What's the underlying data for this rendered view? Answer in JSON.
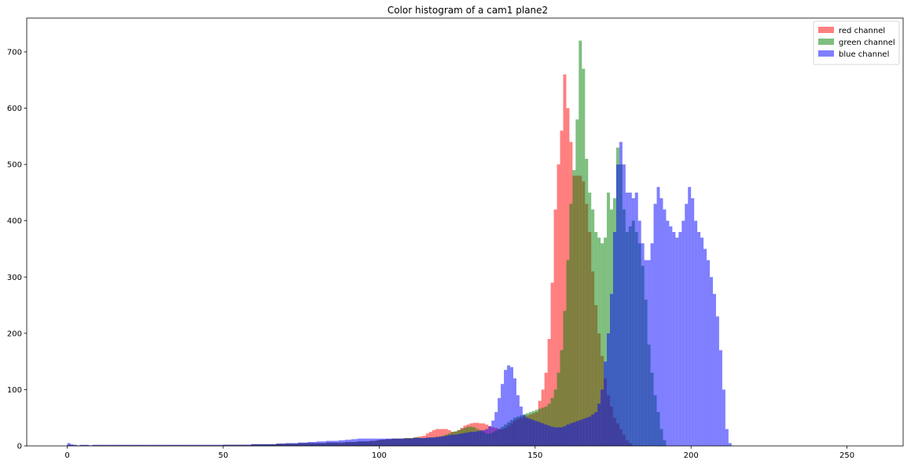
{
  "chart_data": {
    "type": "bar",
    "title": "Color histogram of a cam1 plane2",
    "xlabel": "",
    "ylabel": "",
    "xlim": [
      -13,
      268
    ],
    "ylim": [
      0,
      760
    ],
    "x_ticks": [
      0,
      50,
      100,
      150,
      200,
      250
    ],
    "y_ticks": [
      0,
      100,
      200,
      300,
      400,
      500,
      600,
      700
    ],
    "grid": false,
    "legend_position": "top-right",
    "bin_width": 1,
    "bin_start": 0,
    "series": [
      {
        "name": "red channel",
        "color": "#ff0000",
        "opacity": 0.5,
        "values": [
          2,
          1,
          1,
          0,
          1,
          1,
          1,
          0,
          1,
          1,
          1,
          1,
          1,
          1,
          1,
          1,
          1,
          1,
          1,
          1,
          1,
          1,
          1,
          1,
          1,
          1,
          1,
          1,
          1,
          1,
          1,
          1,
          1,
          1,
          1,
          1,
          1,
          1,
          1,
          1,
          1,
          1,
          1,
          1,
          1,
          1,
          1,
          1,
          1,
          1,
          2,
          2,
          2,
          2,
          2,
          2,
          2,
          2,
          2,
          3,
          3,
          3,
          3,
          3,
          3,
          3,
          3,
          4,
          4,
          4,
          4,
          4,
          4,
          4,
          5,
          5,
          5,
          5,
          5,
          5,
          5,
          5,
          5,
          6,
          6,
          6,
          6,
          6,
          6,
          7,
          7,
          7,
          7,
          8,
          8,
          8,
          8,
          9,
          9,
          10,
          11,
          11,
          12,
          12,
          13,
          13,
          13,
          13,
          14,
          14,
          14,
          15,
          16,
          17,
          18,
          22,
          25,
          28,
          30,
          30,
          30,
          30,
          28,
          25,
          25,
          28,
          32,
          36,
          38,
          40,
          41,
          41,
          40,
          40,
          38,
          35,
          33,
          32,
          30,
          30,
          32,
          36,
          40,
          45,
          48,
          50,
          52,
          54,
          56,
          58,
          60,
          80,
          100,
          130,
          190,
          290,
          420,
          500,
          560,
          660,
          600,
          540,
          480,
          480,
          480,
          470,
          430,
          380,
          310,
          250,
          200,
          160,
          120,
          90,
          70,
          50,
          40,
          30,
          20,
          10,
          5,
          0,
          0,
          0,
          0,
          0,
          0,
          0,
          0,
          0,
          0,
          0,
          0,
          0,
          0,
          0,
          0,
          0,
          0,
          0,
          0,
          0,
          0,
          0,
          0,
          0,
          0,
          0,
          0,
          0,
          0,
          0,
          0,
          0,
          0,
          0,
          0,
          0,
          0,
          0,
          0,
          0,
          0,
          0,
          0,
          0,
          0,
          0,
          0,
          0,
          0,
          0,
          0,
          0,
          0,
          0,
          0,
          0,
          0,
          0,
          0,
          0,
          0,
          0,
          0,
          0,
          0,
          0,
          0,
          0,
          0,
          0,
          0,
          0,
          0,
          0,
          0,
          0
        ]
      },
      {
        "name": "green channel",
        "color": "#008000",
        "opacity": 0.5,
        "values": [
          2,
          1,
          1,
          0,
          1,
          1,
          1,
          0,
          1,
          1,
          1,
          1,
          1,
          1,
          1,
          1,
          1,
          1,
          1,
          1,
          1,
          1,
          1,
          1,
          1,
          1,
          1,
          1,
          1,
          1,
          1,
          1,
          1,
          1,
          1,
          1,
          1,
          1,
          1,
          1,
          1,
          1,
          1,
          1,
          1,
          1,
          1,
          1,
          1,
          1,
          2,
          2,
          2,
          2,
          2,
          2,
          2,
          2,
          2,
          3,
          3,
          3,
          3,
          3,
          3,
          3,
          3,
          4,
          4,
          4,
          4,
          4,
          4,
          4,
          5,
          5,
          5,
          5,
          5,
          5,
          5,
          5,
          5,
          6,
          6,
          6,
          6,
          6,
          6,
          7,
          7,
          7,
          7,
          8,
          8,
          8,
          8,
          9,
          9,
          10,
          11,
          11,
          12,
          12,
          13,
          13,
          13,
          13,
          14,
          14,
          14,
          15,
          15,
          14,
          14,
          14,
          15,
          15,
          16,
          17,
          18,
          20,
          22,
          25,
          26,
          28,
          30,
          32,
          34,
          34,
          33,
          30,
          28,
          25,
          22,
          22,
          24,
          27,
          30,
          34,
          38,
          42,
          46,
          50,
          52,
          54,
          56,
          58,
          60,
          62,
          64,
          66,
          68,
          70,
          75,
          85,
          100,
          130,
          170,
          240,
          330,
          430,
          490,
          580,
          720,
          670,
          510,
          450,
          420,
          380,
          370,
          360,
          370,
          450,
          420,
          440,
          530,
          500,
          420,
          380,
          390,
          400,
          380,
          360,
          320,
          260,
          180,
          130,
          90,
          60,
          30,
          10,
          0,
          0,
          0,
          0,
          0,
          0,
          0,
          0,
          0,
          0,
          0,
          0,
          0,
          0,
          0,
          0,
          0,
          0,
          0,
          0,
          0,
          0,
          0,
          0,
          0,
          0,
          0,
          0,
          0,
          0,
          0,
          0,
          0,
          0,
          0,
          0,
          0,
          0,
          0,
          0,
          0,
          0,
          0,
          0,
          0,
          0,
          0,
          0,
          0,
          0,
          0,
          0,
          0,
          0,
          0,
          0,
          0,
          0,
          0,
          0,
          0,
          0,
          0
        ]
      },
      {
        "name": "blue channel",
        "color": "#0000ff",
        "opacity": 0.5,
        "values": [
          5,
          3,
          2,
          1,
          2,
          2,
          2,
          1,
          2,
          2,
          2,
          2,
          2,
          2,
          2,
          2,
          2,
          2,
          2,
          2,
          2,
          2,
          2,
          2,
          2,
          2,
          2,
          2,
          2,
          2,
          2,
          2,
          2,
          2,
          2,
          2,
          2,
          2,
          2,
          2,
          2,
          2,
          2,
          2,
          2,
          2,
          2,
          2,
          2,
          2,
          2,
          2,
          2,
          2,
          2,
          2,
          2,
          2,
          2,
          3,
          3,
          3,
          3,
          3,
          3,
          3,
          3,
          4,
          4,
          4,
          5,
          5,
          5,
          5,
          6,
          6,
          6,
          7,
          7,
          7,
          8,
          8,
          8,
          9,
          9,
          9,
          9,
          10,
          10,
          11,
          11,
          12,
          12,
          13,
          13,
          13,
          13,
          13,
          13,
          13,
          13,
          13,
          13,
          13,
          13,
          13,
          13,
          13,
          13,
          13,
          13,
          14,
          14,
          14,
          14,
          15,
          15,
          15,
          16,
          16,
          17,
          18,
          19,
          20,
          20,
          21,
          22,
          23,
          24,
          25,
          25,
          26,
          27,
          28,
          30,
          35,
          45,
          60,
          85,
          110,
          135,
          143,
          140,
          120,
          90,
          70,
          55,
          50,
          48,
          46,
          44,
          42,
          40,
          38,
          36,
          34,
          33,
          33,
          33,
          35,
          38,
          40,
          42,
          44,
          46,
          48,
          50,
          52,
          56,
          60,
          75,
          100,
          150,
          200,
          270,
          380,
          500,
          540,
          500,
          450,
          450,
          440,
          450,
          400,
          360,
          330,
          330,
          360,
          430,
          460,
          440,
          420,
          400,
          390,
          380,
          370,
          380,
          400,
          430,
          460,
          440,
          400,
          380,
          370,
          350,
          330,
          300,
          270,
          230,
          170,
          100,
          30,
          5,
          0,
          0,
          0,
          0,
          0,
          0,
          0,
          0,
          0,
          0,
          0,
          0,
          0,
          0,
          0,
          0,
          0,
          0,
          0,
          0,
          0,
          0,
          0,
          0,
          0,
          0,
          0,
          0,
          0,
          0,
          0,
          0,
          0,
          0,
          0,
          0,
          0,
          0,
          0,
          0,
          0,
          0,
          0,
          0,
          0,
          0,
          0,
          0,
          0,
          0,
          0,
          0,
          0,
          0,
          0
        ]
      }
    ]
  }
}
